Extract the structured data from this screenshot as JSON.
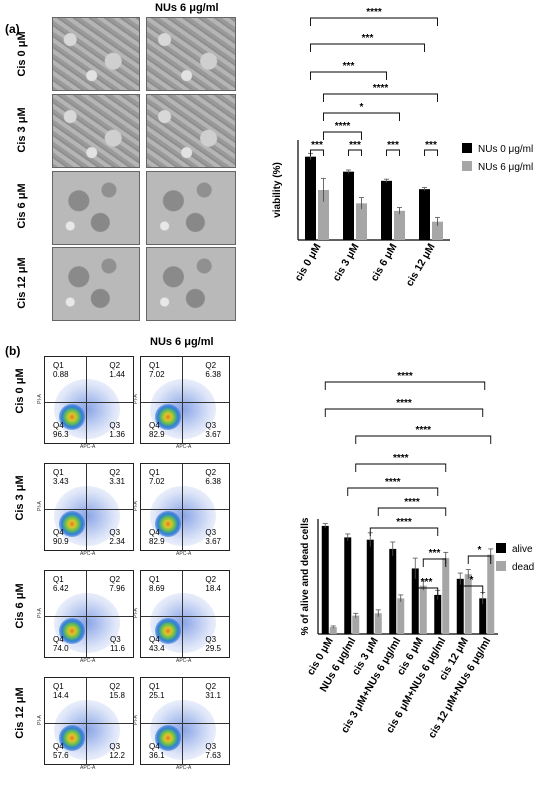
{
  "panel_a": {
    "label": "(a)",
    "column_title": "NUs 6 μg/ml",
    "row_labels": [
      "Cis 0 μM",
      "Cis 3 μM",
      "Cis 6 μM",
      "Cis 12 μM"
    ]
  },
  "panel_b": {
    "label": "(b)",
    "column_title": "NUs 6 μg/ml",
    "row_labels": [
      "Cis 0 μM",
      "Cis 3 μM",
      "Cis 6 μM",
      "Cis 12 μM"
    ],
    "x_axis_label": "APC-A",
    "y_axis_label": "PI-A",
    "flow_plots": [
      [
        {
          "q1": "0.88",
          "q2": "1.44",
          "q3": "1.36",
          "q4": "96.3"
        },
        {
          "q1": "7.02",
          "q2": "6.38",
          "q3": "3.67",
          "q4": "82.9"
        }
      ],
      [
        {
          "q1": "3.43",
          "q2": "3.31",
          "q3": "2.34",
          "q4": "90.9"
        },
        {
          "q1": "7.02",
          "q2": "6.38",
          "q3": "3.67",
          "q4": "82.9"
        }
      ],
      [
        {
          "q1": "6.42",
          "q2": "7.96",
          "q3": "11.6",
          "q4": "74.0"
        },
        {
          "q1": "8.69",
          "q2": "18.4",
          "q3": "29.5",
          "q4": "43.4"
        }
      ],
      [
        {
          "q1": "14.4",
          "q2": "15.8",
          "q3": "12.2",
          "q4": "57.6"
        },
        {
          "q1": "25.1",
          "q2": "31.1",
          "q3": "7.63",
          "q4": "36.1"
        }
      ]
    ]
  },
  "chart_data": [
    {
      "type": "bar",
      "ylabel": "viability (%)",
      "ylim": [
        0,
        120
      ],
      "categories": [
        "cis 0 μM",
        "cis 3 μM",
        "cis 6 μM",
        "cis 12 μM"
      ],
      "series": [
        {
          "name": "NUs 0 μg/ml",
          "color": "#000000",
          "values": [
            100,
            82,
            71,
            61
          ],
          "errors": [
            4,
            2,
            2,
            2
          ]
        },
        {
          "name": "NUs 6 μg/ml",
          "color": "#a6a6a6",
          "values": [
            60,
            44,
            35,
            22
          ],
          "errors": [
            14,
            7,
            4,
            5
          ]
        }
      ],
      "significance": [
        {
          "from": 0,
          "to": 1,
          "series": "pair",
          "label": "***",
          "level": 1
        },
        {
          "from": 2,
          "to": 3,
          "series": "pair",
          "label": "***",
          "level": 1
        },
        {
          "from": 4,
          "to": 5,
          "series": "pair",
          "label": "***",
          "level": 1
        },
        {
          "from": 6,
          "to": 7,
          "series": "pair",
          "label": "***",
          "level": 1
        },
        {
          "from": 1,
          "to": 3,
          "label": "****",
          "level": 2
        },
        {
          "from": 1,
          "to": 5,
          "label": "*",
          "level": 3
        },
        {
          "from": 1,
          "to": 7,
          "label": "****",
          "level": 4
        },
        {
          "from": 0,
          "to": 4,
          "label": "***",
          "level": 5
        },
        {
          "from": 0,
          "to": 6,
          "label": "***",
          "level": 6
        },
        {
          "from": 0,
          "to": 7,
          "label": "****",
          "level": 7
        }
      ]
    },
    {
      "type": "bar",
      "ylabel": "% of alive and dead cells",
      "ylim": [
        0,
        100
      ],
      "categories": [
        "cis 0 μM",
        "NUs 6 μg/ml",
        "cis 3 μM",
        "cis 3 μM+NUs 6 μg/ml",
        "cis 6 μM",
        "cis 6 μM+NUs 6 μg/ml",
        "cis 12 μM",
        "cis 12 μM+NUs 6 μg/ml"
      ],
      "series": [
        {
          "name": "alive",
          "color": "#000000",
          "values": [
            94,
            84,
            82,
            74,
            57,
            34,
            48,
            31
          ],
          "errors": [
            2,
            3,
            6,
            6,
            9,
            4,
            5,
            5
          ]
        },
        {
          "name": "dead",
          "color": "#a6a6a6",
          "values": [
            6,
            16,
            18,
            31,
            42,
            66,
            52,
            69
          ],
          "errors": [
            1,
            2,
            3,
            3,
            4,
            5,
            4,
            5
          ]
        }
      ],
      "significance": [
        {
          "from": 4,
          "to": 5,
          "label": "***",
          "level": 1
        },
        {
          "from": 6,
          "to": 7,
          "label": "*",
          "level": 1
        },
        {
          "from": 4,
          "to": 5,
          "label": "***",
          "level": 2
        },
        {
          "from": 6,
          "to": 7,
          "label": "*",
          "level": 2
        },
        {
          "from": 2,
          "to": 5,
          "label": "****",
          "level": 3
        },
        {
          "from": 2,
          "to": 5,
          "label": "****",
          "level": 4
        },
        {
          "from": 1,
          "to": 5,
          "label": "****",
          "level": 5
        },
        {
          "from": 1,
          "to": 5,
          "label": "****",
          "level": 6
        },
        {
          "from": 1,
          "to": 7,
          "label": "****",
          "level": 7
        },
        {
          "from": 0,
          "to": 7,
          "label": "****",
          "level": 8
        },
        {
          "from": 0,
          "to": 7,
          "label": "****",
          "level": 9
        }
      ]
    }
  ]
}
